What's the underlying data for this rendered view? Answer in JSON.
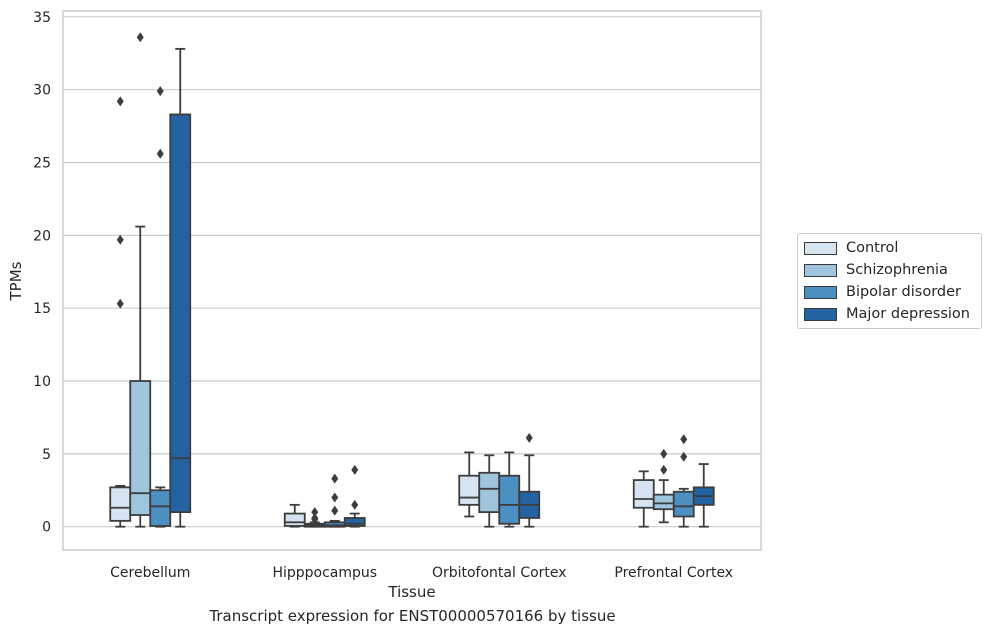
{
  "chart_data": {
    "type": "box",
    "xlabel": "Tissue",
    "ylabel": "TPMs",
    "caption": "Transcript expression for ENST00000570166 by tissue",
    "ylim": [
      -1.6,
      35.4
    ],
    "yticks": [
      0,
      5,
      10,
      15,
      20,
      25,
      30,
      35
    ],
    "grid": "horizontal",
    "legend_position": "right",
    "categories": [
      "Cerebellum",
      "Hipppocampus",
      "Orbitofontal Cortex",
      "Prefrontal Cortex"
    ],
    "series": [
      {
        "name": "Control",
        "color": "#d6e4f2",
        "boxes": [
          {
            "whislo": 0.0,
            "q1": 0.4,
            "med": 1.3,
            "q3": 2.7,
            "whishi": 2.8,
            "fliers": [
              15.3,
              19.7,
              29.2
            ]
          },
          {
            "whislo": 0.0,
            "q1": 0.05,
            "med": 0.3,
            "q3": 0.9,
            "whishi": 1.5,
            "fliers": []
          },
          {
            "whislo": 0.7,
            "q1": 1.5,
            "med": 2.0,
            "q3": 3.5,
            "whishi": 5.1,
            "fliers": []
          },
          {
            "whislo": 0.0,
            "q1": 1.3,
            "med": 1.9,
            "q3": 3.2,
            "whishi": 3.8,
            "fliers": []
          }
        ]
      },
      {
        "name": "Schizophrenia",
        "color": "#9ec4de",
        "boxes": [
          {
            "whislo": 0.0,
            "q1": 0.8,
            "med": 2.3,
            "q3": 10.0,
            "whishi": 20.6,
            "fliers": [
              33.6
            ]
          },
          {
            "whislo": 0.0,
            "q1": 0.0,
            "med": 0.1,
            "q3": 0.2,
            "whishi": 0.3,
            "fliers": [
              0.5,
              0.6,
              1.0
            ]
          },
          {
            "whislo": 0.0,
            "q1": 1.0,
            "med": 2.6,
            "q3": 3.7,
            "whishi": 4.9,
            "fliers": []
          },
          {
            "whislo": 0.3,
            "q1": 1.2,
            "med": 1.6,
            "q3": 2.2,
            "whishi": 3.2,
            "fliers": [
              3.9,
              5.0
            ]
          }
        ]
      },
      {
        "name": "Bipolar disorder",
        "color": "#4c8fc1",
        "boxes": [
          {
            "whislo": 0.0,
            "q1": 0.05,
            "med": 1.4,
            "q3": 2.5,
            "whishi": 2.7,
            "fliers": [
              25.6,
              29.9
            ]
          },
          {
            "whislo": 0.0,
            "q1": 0.0,
            "med": 0.1,
            "q3": 0.3,
            "whishi": 0.4,
            "fliers": [
              1.1,
              2.0,
              3.3
            ]
          },
          {
            "whislo": 0.0,
            "q1": 0.2,
            "med": 1.5,
            "q3": 3.5,
            "whishi": 5.1,
            "fliers": []
          },
          {
            "whislo": 0.0,
            "q1": 0.7,
            "med": 1.4,
            "q3": 2.4,
            "whishi": 2.6,
            "fliers": [
              4.8,
              6.0
            ]
          }
        ]
      },
      {
        "name": "Major depression",
        "color": "#2463a2",
        "boxes": [
          {
            "whislo": 0.0,
            "q1": 1.0,
            "med": 4.7,
            "q3": 28.3,
            "whishi": 32.8,
            "fliers": []
          },
          {
            "whislo": 0.0,
            "q1": 0.05,
            "med": 0.2,
            "q3": 0.6,
            "whishi": 0.9,
            "fliers": [
              1.5,
              3.9
            ]
          },
          {
            "whislo": 0.0,
            "q1": 0.6,
            "med": 1.5,
            "q3": 2.4,
            "whishi": 4.9,
            "fliers": [
              6.1
            ]
          },
          {
            "whislo": 0.0,
            "q1": 1.5,
            "med": 2.1,
            "q3": 2.7,
            "whishi": 4.3,
            "fliers": []
          }
        ]
      }
    ]
  }
}
